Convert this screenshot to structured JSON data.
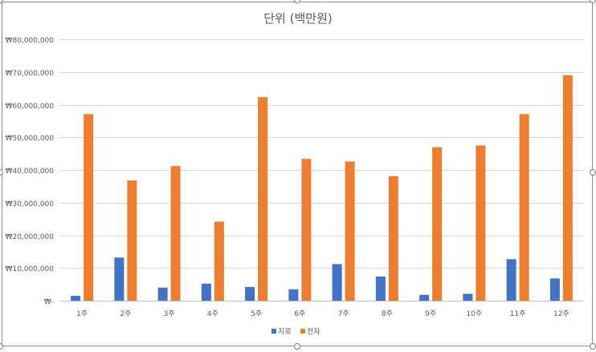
{
  "chart_data": {
    "type": "bar",
    "title": "단위 (백만원)",
    "categories": [
      "1주",
      "2주",
      "3주",
      "4주",
      "5주",
      "6주",
      "7주",
      "8주",
      "9주",
      "10주",
      "11주",
      "12주"
    ],
    "series": [
      {
        "name": "지로",
        "color": "#4472c4",
        "values": [
          1500000,
          13200000,
          4000000,
          5200000,
          4200000,
          3500000,
          11200000,
          7400000,
          1800000,
          2100000,
          12700000,
          6800000
        ]
      },
      {
        "name": "전자",
        "color": "#ed7d31",
        "values": [
          57100000,
          36800000,
          41200000,
          24200000,
          62300000,
          43400000,
          42600000,
          38100000,
          47000000,
          47500000,
          57100000,
          69000000
        ]
      }
    ],
    "ylim": [
      0,
      80000000
    ],
    "y_ticks": [
      0,
      10000000,
      20000000,
      30000000,
      40000000,
      50000000,
      60000000,
      70000000,
      80000000
    ],
    "y_tick_labels": [
      "₩-",
      "₩10,000,000",
      "₩20,000,000",
      "₩30,000,000",
      "₩40,000,000",
      "₩50,000,000",
      "₩60,000,000",
      "₩70,000,000",
      "₩80,000,000"
    ],
    "legend_position": "bottom",
    "grid": true
  }
}
